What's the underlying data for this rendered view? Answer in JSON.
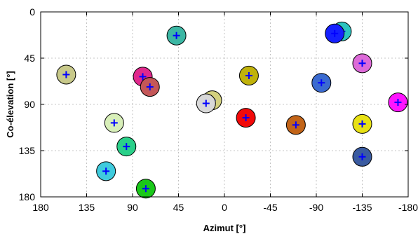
{
  "chart_data": {
    "type": "scatter",
    "xlabel": "Azimut [°]",
    "ylabel": "Co-élevation [°]",
    "xlim": [
      180,
      -180
    ],
    "ylim": [
      0,
      180
    ],
    "x_reversed": true,
    "y_reversed": true,
    "x_ticks": [
      180,
      135,
      90,
      45,
      0,
      -45,
      -90,
      -135,
      -180
    ],
    "x_tick_labels": [
      "180",
      "135",
      "90",
      "45",
      "0",
      "-45",
      "-90",
      "-135",
      "-180"
    ],
    "y_ticks": [
      0,
      45,
      90,
      135,
      180
    ],
    "y_tick_labels": [
      "0",
      "45",
      "90",
      "135",
      "180"
    ],
    "grid": true,
    "marker": "+",
    "marker_color": "#0000ff",
    "points": [
      {
        "x": 47,
        "y": 23,
        "color": "#3cb7a4"
      },
      {
        "x": 155,
        "y": 61,
        "color": "#c8c98a"
      },
      {
        "x": 80,
        "y": 63,
        "color": "#e0288c"
      },
      {
        "x": 73,
        "y": 73,
        "color": "#c45758"
      },
      {
        "x": -24,
        "y": 62,
        "color": "#c0b20b"
      },
      {
        "x": 12,
        "y": 86,
        "color": "#d3d07e"
      },
      {
        "x": 18,
        "y": 89,
        "color": "#d8d8d8"
      },
      {
        "x": -21,
        "y": 103,
        "color": "#f20a0a"
      },
      {
        "x": -70,
        "y": 110,
        "color": "#c26418"
      },
      {
        "x": -95,
        "y": 69,
        "color": "#3b6bd0"
      },
      {
        "x": -115,
        "y": 19,
        "color": "#2bc3c0"
      },
      {
        "x": -108,
        "y": 21,
        "color": "#1520ff"
      },
      {
        "x": -135,
        "y": 50,
        "color": "#dd6ad8"
      },
      {
        "x": -170,
        "y": 88,
        "color": "#ff14ff"
      },
      {
        "x": -135,
        "y": 109,
        "color": "#e8e114"
      },
      {
        "x": -135,
        "y": 141,
        "color": "#3a5ba0"
      },
      {
        "x": 108,
        "y": 108,
        "color": "#d8efb9"
      },
      {
        "x": 96,
        "y": 131,
        "color": "#2ad089"
      },
      {
        "x": 116,
        "y": 155,
        "color": "#3fcbdd"
      },
      {
        "x": 77,
        "y": 172,
        "color": "#1ac81a"
      }
    ]
  }
}
